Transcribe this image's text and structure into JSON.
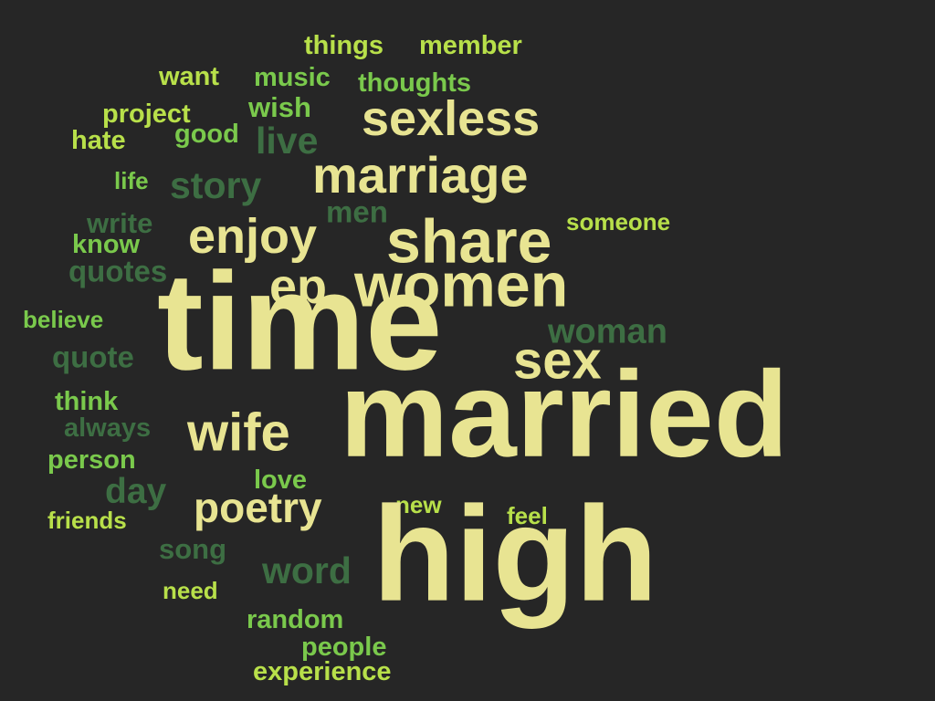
{
  "colors": {
    "cream": "#e8e492",
    "lime": "#b8e04a",
    "green": "#7ac94c",
    "dark": "#3d6e43",
    "background": "#262626"
  },
  "words": {
    "things": "things",
    "member": "member",
    "want": "want",
    "music": "music",
    "thoughts": "thoughts",
    "project": "project",
    "wish": "wish",
    "sexless": "sexless",
    "hate": "hate",
    "good": "good",
    "live": "live",
    "life": "life",
    "story": "story",
    "marriage": "marriage",
    "men": "men",
    "write": "write",
    "someone": "someone",
    "know": "know",
    "enjoy": "enjoy",
    "share": "share",
    "quotes": "quotes",
    "ep": "ep",
    "women": "women",
    "believe": "believe",
    "time": "time",
    "woman": "woman",
    "quote": "quote",
    "sex": "sex",
    "think": "think",
    "always": "always",
    "wife": "wife",
    "married": "married",
    "person": "person",
    "love": "love",
    "day": "day",
    "new": "new",
    "poetry": "poetry",
    "friends": "friends",
    "feel": "feel",
    "song": "song",
    "word": "word",
    "need": "need",
    "high": "high",
    "random": "random",
    "people": "people",
    "experience": "experience"
  }
}
